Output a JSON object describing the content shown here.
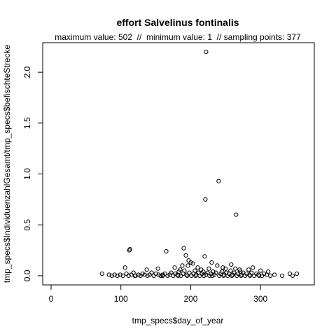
{
  "chart_data": {
    "type": "scatter",
    "title": "effort Salvelinus fontinalis",
    "subtitle": "maximum value: 502  //  minimum value: 1  // sampling points: 377",
    "xlabel": "tmp_specs$day_of_year",
    "ylabel": "tmp_specs$IndividuenzahlGesamt/tmp_specs$befischteStrecke",
    "xlim": [
      -12,
      377
    ],
    "ylim": [
      -0.09,
      2.29
    ],
    "x_ticks": [
      0,
      100,
      200,
      300
    ],
    "x_tick_labels": [
      "0",
      "100",
      "200",
      "300"
    ],
    "y_ticks": [
      0.0,
      0.5,
      1.0,
      1.5,
      2.0
    ],
    "y_tick_labels": [
      "0.0",
      "0.5",
      "1.0",
      "1.5",
      "2.0"
    ],
    "grid": false,
    "legend": "none",
    "point_style": "open-circle",
    "point_color": "#000000",
    "points": [
      [
        222,
        2.2
      ],
      [
        240,
        0.93
      ],
      [
        221,
        0.75
      ],
      [
        265,
        0.6
      ],
      [
        112,
        0.25
      ],
      [
        113,
        0.26
      ],
      [
        165,
        0.24
      ],
      [
        190,
        0.27
      ],
      [
        220,
        0.19
      ],
      [
        193,
        0.2
      ],
      [
        197,
        0.15
      ],
      [
        200,
        0.13
      ],
      [
        196,
        0.1
      ],
      [
        203,
        0.12
      ],
      [
        188,
        0.1
      ],
      [
        230,
        0.13
      ],
      [
        238,
        0.1
      ],
      [
        258,
        0.11
      ],
      [
        289,
        0.08
      ],
      [
        106,
        0.08
      ],
      [
        137,
        0.06
      ],
      [
        153,
        0.07
      ],
      [
        177,
        0.08
      ],
      [
        210,
        0.08
      ],
      [
        226,
        0.07
      ],
      [
        246,
        0.08
      ],
      [
        250,
        0.07
      ],
      [
        264,
        0.07
      ],
      [
        270,
        0.06
      ],
      [
        283,
        0.06
      ],
      [
        300,
        0.05
      ],
      [
        311,
        0.04
      ],
      [
        185,
        0.06
      ],
      [
        215,
        0.06
      ],
      [
        73,
        0.02
      ],
      [
        83,
        0.01
      ],
      [
        87,
        0.0
      ],
      [
        91,
        0.01
      ],
      [
        95,
        0.0
      ],
      [
        99,
        0.01
      ],
      [
        103,
        0.0
      ],
      [
        108,
        0.02
      ],
      [
        111,
        0.0
      ],
      [
        115,
        0.01
      ],
      [
        118,
        0.03
      ],
      [
        121,
        0.0
      ],
      [
        125,
        0.01
      ],
      [
        128,
        0.0
      ],
      [
        131,
        0.02
      ],
      [
        134,
        0.01
      ],
      [
        138,
        0.0
      ],
      [
        141,
        0.01
      ],
      [
        144,
        0.03
      ],
      [
        147,
        0.0
      ],
      [
        150,
        0.02
      ],
      [
        154,
        0.01
      ],
      [
        157,
        0.0
      ],
      [
        160,
        0.01
      ],
      [
        163,
        0.02
      ],
      [
        167,
        0.0
      ],
      [
        170,
        0.01
      ],
      [
        172,
        0.03
      ],
      [
        175,
        0.0
      ],
      [
        178,
        0.02
      ],
      [
        181,
        0.01
      ],
      [
        183,
        0.04
      ],
      [
        186,
        0.0
      ],
      [
        189,
        0.02
      ],
      [
        191,
        0.05
      ],
      [
        194,
        0.01
      ],
      [
        198,
        0.03
      ],
      [
        201,
        0.0
      ],
      [
        204,
        0.02
      ],
      [
        206,
        0.05
      ],
      [
        208,
        0.01
      ],
      [
        211,
        0.03
      ],
      [
        213,
        0.0
      ],
      [
        216,
        0.02
      ],
      [
        218,
        0.04
      ],
      [
        222,
        0.01
      ],
      [
        224,
        0.03
      ],
      [
        227,
        0.0
      ],
      [
        229,
        0.02
      ],
      [
        232,
        0.04
      ],
      [
        234,
        0.01
      ],
      [
        236,
        0.03
      ],
      [
        241,
        0.0
      ],
      [
        243,
        0.02
      ],
      [
        245,
        0.04
      ],
      [
        248,
        0.01
      ],
      [
        251,
        0.03
      ],
      [
        253,
        0.0
      ],
      [
        255,
        0.02
      ],
      [
        257,
        0.05
      ],
      [
        260,
        0.01
      ],
      [
        262,
        0.03
      ],
      [
        266,
        0.0
      ],
      [
        268,
        0.02
      ],
      [
        271,
        0.04
      ],
      [
        273,
        0.01
      ],
      [
        275,
        0.03
      ],
      [
        278,
        0.0
      ],
      [
        280,
        0.02
      ],
      [
        284,
        0.01
      ],
      [
        287,
        0.03
      ],
      [
        291,
        0.0
      ],
      [
        294,
        0.02
      ],
      [
        297,
        0.01
      ],
      [
        302,
        0.0
      ],
      [
        305,
        0.02
      ],
      [
        309,
        0.01
      ],
      [
        314,
        0.0
      ],
      [
        320,
        0.01
      ],
      [
        331,
        0.0
      ],
      [
        342,
        0.02
      ],
      [
        346,
        0.0
      ],
      [
        352,
        0.02
      ],
      [
        120,
        0.0
      ],
      [
        160,
        0.0
      ],
      [
        182,
        0.0
      ],
      [
        195,
        0.0
      ],
      [
        207,
        0.0
      ],
      [
        219,
        0.0
      ],
      [
        231,
        0.0
      ],
      [
        247,
        0.0
      ],
      [
        259,
        0.0
      ],
      [
        272,
        0.0
      ],
      [
        285,
        0.0
      ],
      [
        298,
        0.0
      ]
    ]
  }
}
